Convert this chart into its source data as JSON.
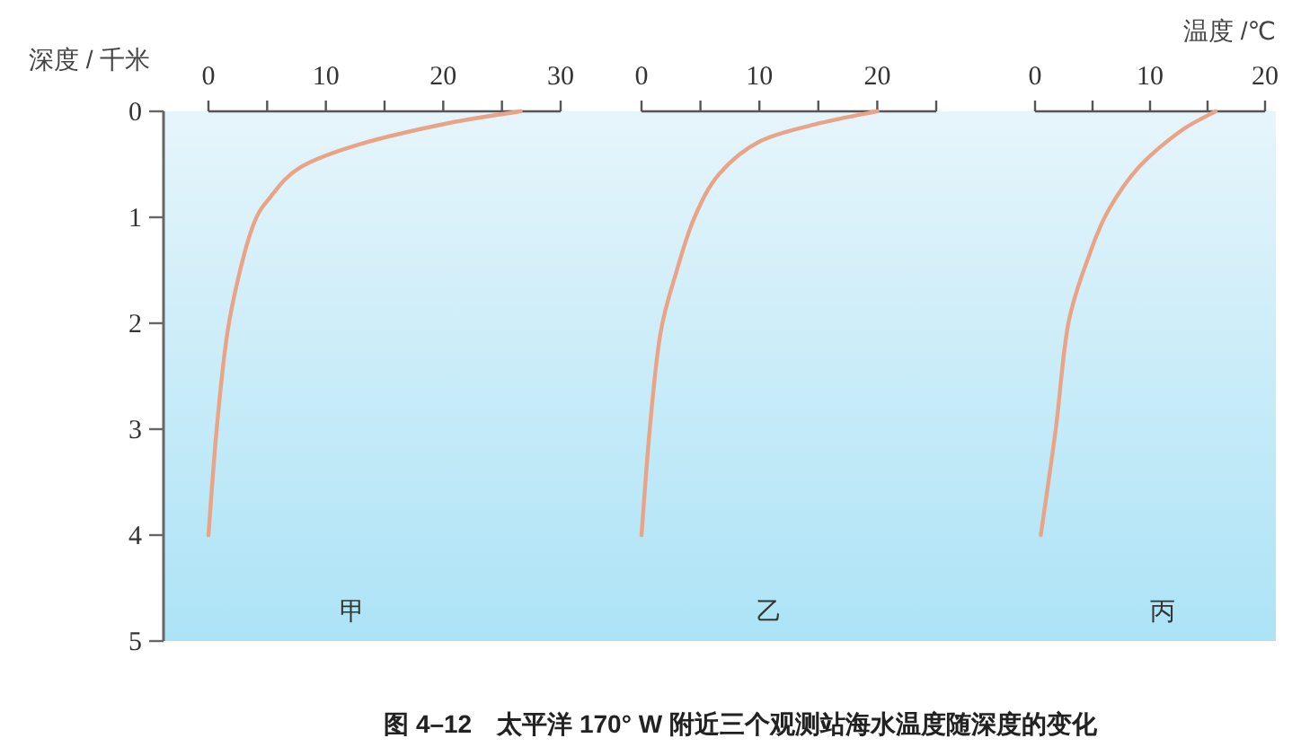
{
  "chart_data": [
    {
      "type": "line",
      "ylabel": "深度 / 千米",
      "annotations": [
        "图 4–12　太平洋 170° W 附近三个观测站海水温度随深度的变化"
      ],
      "xlim": [
        0,
        30
      ],
      "xticks": [
        0,
        {
          "value": 5,
          "label": null
        },
        10,
        {
          "value": 15,
          "label": null
        },
        20,
        {
          "value": 25,
          "label": null
        },
        30
      ],
      "ylim": [
        5,
        0
      ],
      "yticks": [
        0,
        1,
        2,
        3,
        4,
        5
      ],
      "series": [
        {
          "name": "甲",
          "color": "#e9a386",
          "x": [
            26.6,
            20.5,
            12.9,
            7.8,
            5.2,
            3.9,
            2.7,
            1.6,
            0.7,
            0
          ],
          "values": [
            0,
            0.11,
            0.31,
            0.53,
            0.82,
            1.05,
            1.5,
            2.1,
            3,
            4
          ]
        }
      ]
    },
    {
      "type": "line",
      "xlim": [
        0,
        25
      ],
      "xticks": [
        0,
        {
          "value": 5,
          "label": null
        },
        10,
        {
          "value": 15,
          "label": null
        },
        20,
        {
          "value": 25,
          "label": null
        }
      ],
      "ylim": [
        5,
        0
      ],
      "tick_labels": "x",
      "series": [
        {
          "name": "乙",
          "color": "#e9a386",
          "x": [
            20,
            15.2,
            10.1,
            6.6,
            4.5,
            3,
            1.6,
            0.7,
            0
          ],
          "values": [
            0,
            0.11,
            0.28,
            0.59,
            1,
            1.5,
            2.1,
            3,
            4
          ]
        }
      ]
    },
    {
      "type": "line",
      "xlabel": "温度 /℃",
      "xlim": [
        0,
        20
      ],
      "xticks": [
        0,
        {
          "value": 5,
          "label": null
        },
        10,
        {
          "value": 15,
          "label": null
        },
        20
      ],
      "ylim": [
        5,
        0
      ],
      "tick_labels": "x",
      "series": [
        {
          "name": "丙",
          "color": "#e9a386",
          "x": [
            15.7,
            12.6,
            9,
            6.4,
            4.8,
            2.9,
            1.8,
            0.5
          ],
          "values": [
            0,
            0.19,
            0.53,
            0.93,
            1.33,
            2,
            3,
            4
          ]
        }
      ]
    }
  ]
}
